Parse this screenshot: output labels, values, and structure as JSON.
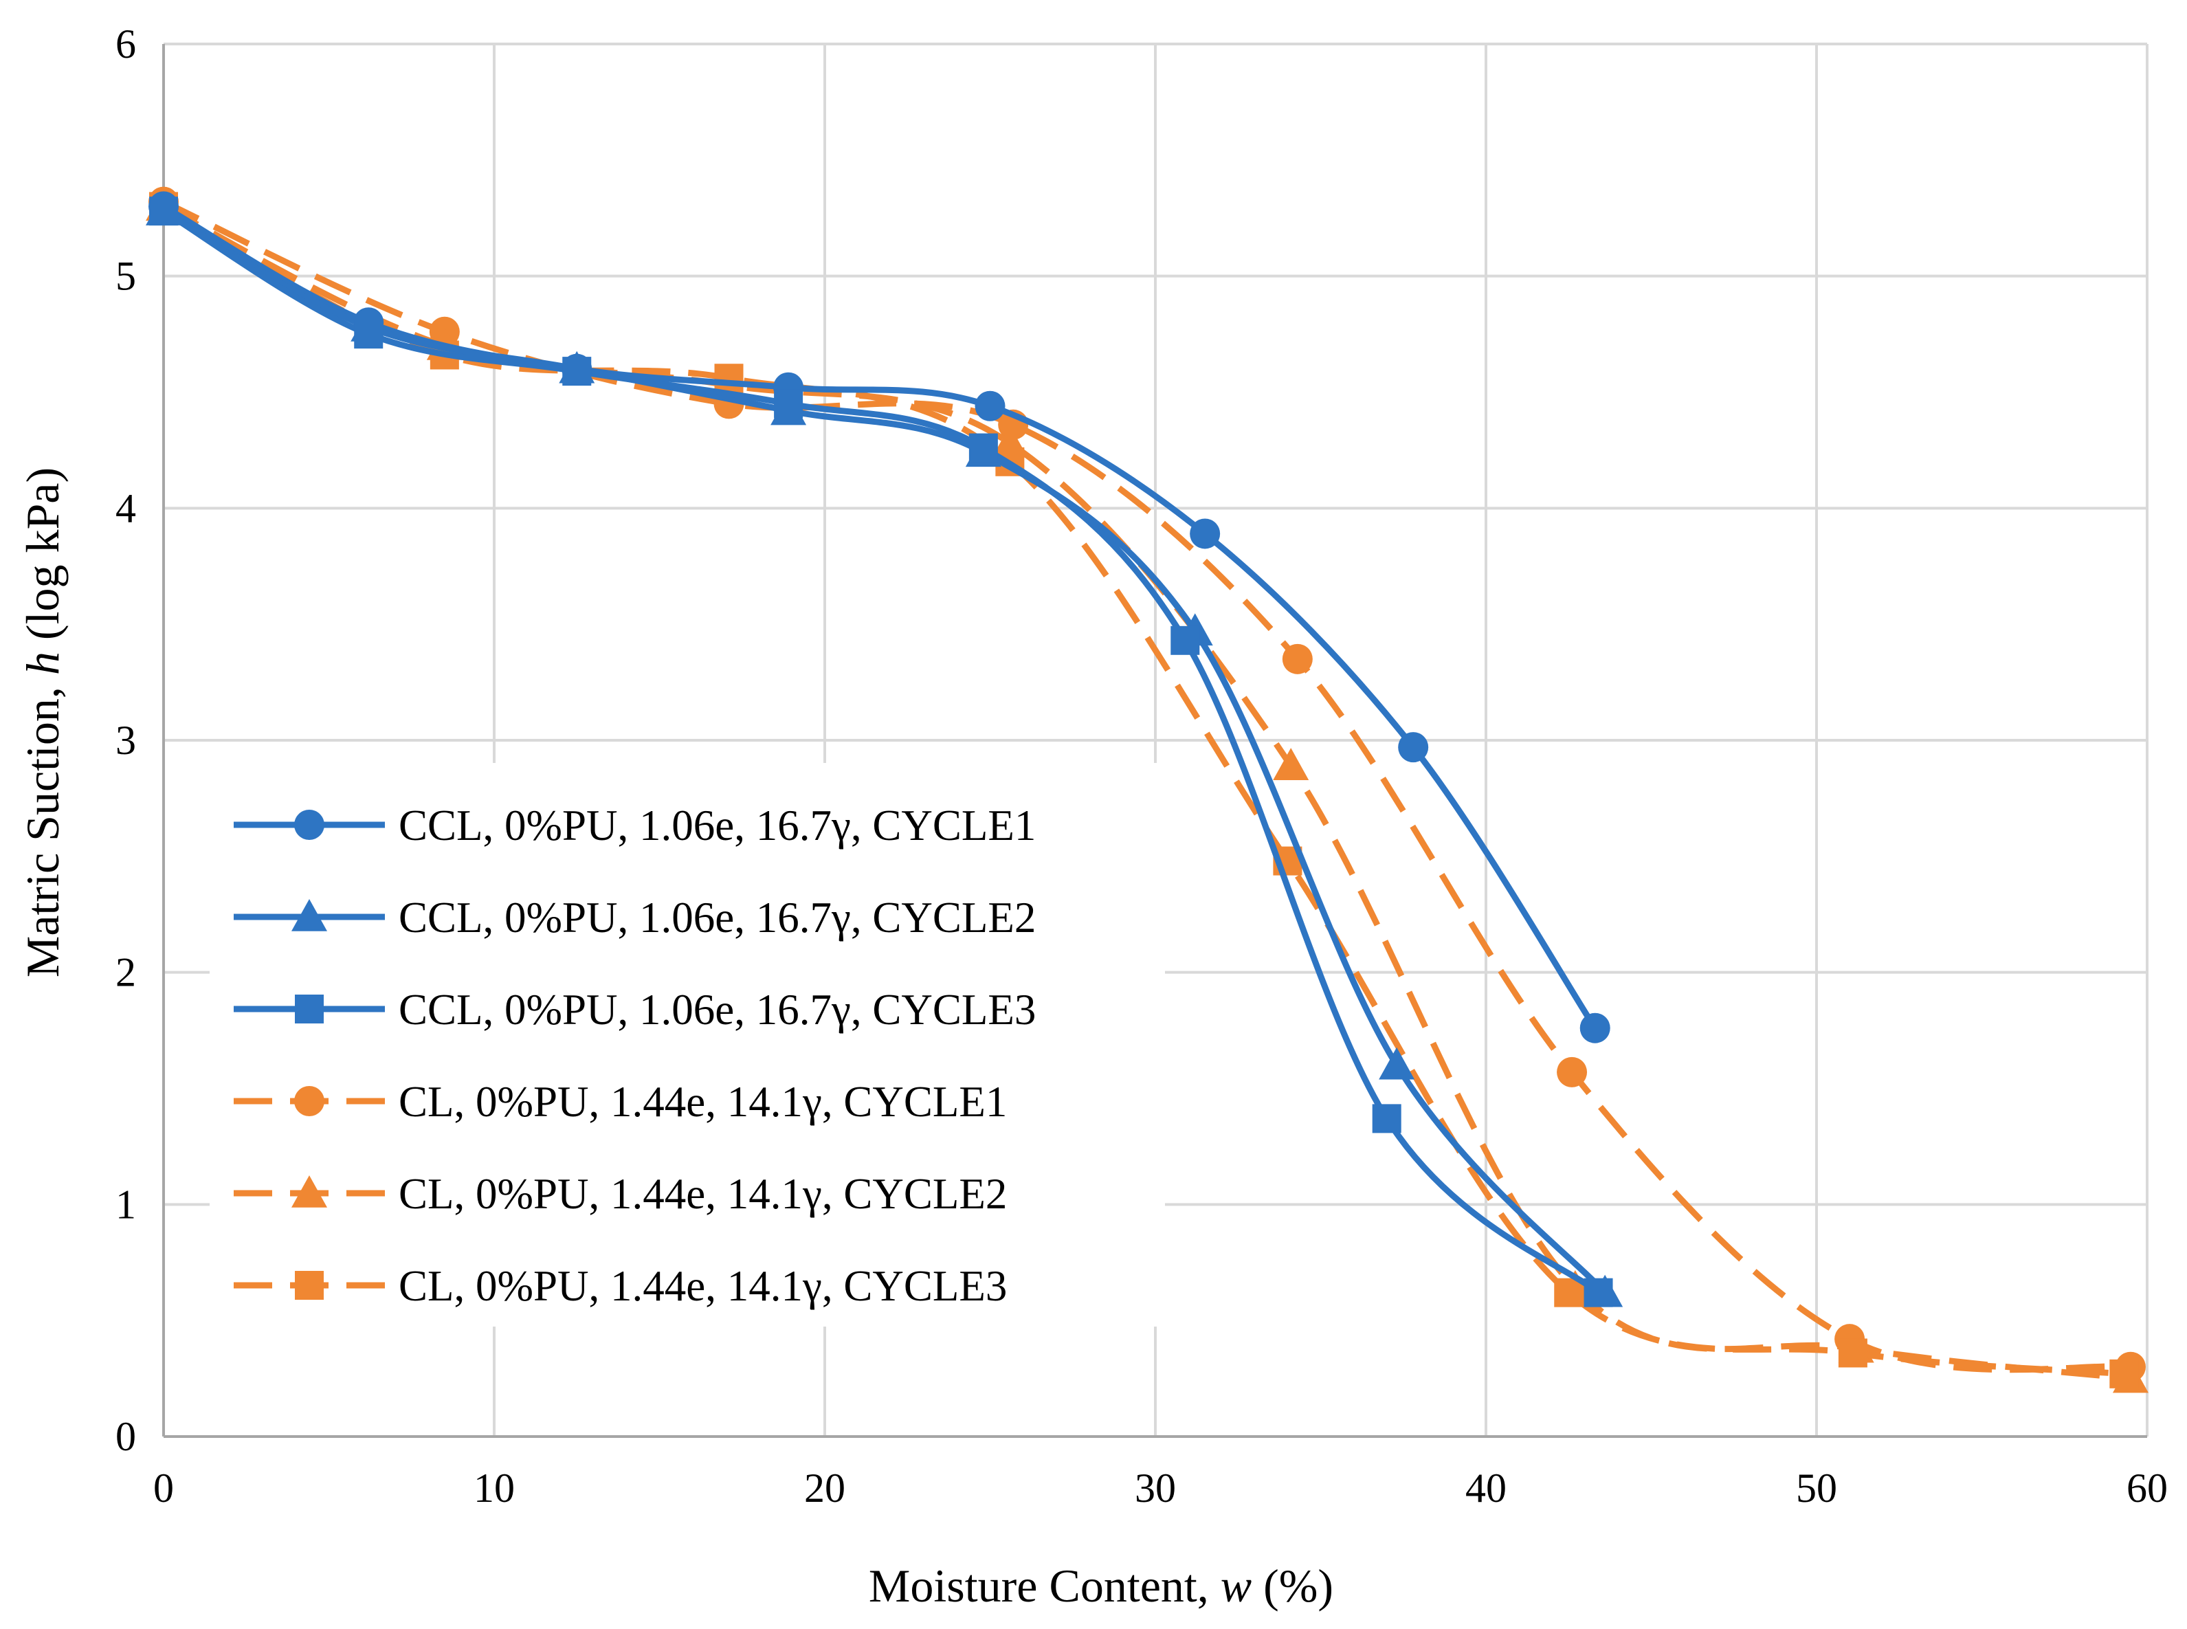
{
  "chart_data": {
    "type": "line",
    "title": "",
    "xlabel_prefix": "Moisture Content, ",
    "xlabel_var": "w",
    "xlabel_suffix": " (%)",
    "ylabel_prefix": "Matric Suction, ",
    "ylabel_var": "h",
    "ylabel_suffix": " (log kPa)",
    "xlim": [
      0,
      60
    ],
    "ylim": [
      0,
      6
    ],
    "xticks": [
      0,
      10,
      20,
      30,
      40,
      50,
      60
    ],
    "yticks": [
      0,
      1,
      2,
      3,
      4,
      5,
      6
    ],
    "grid": true,
    "legend_position": "lower-left",
    "series": [
      {
        "name": "CCL, 0%PU, 1.06e, 16.7γ, CYCLE1",
        "color": "#2E75C3",
        "dash": "solid",
        "marker": "circle",
        "x": [
          0,
          6.2,
          12.5,
          18.9,
          25.0,
          31.5,
          37.8,
          43.3
        ],
        "y": [
          5.3,
          4.8,
          4.6,
          4.52,
          4.44,
          3.89,
          2.97,
          1.76
        ]
      },
      {
        "name": "CCL, 0%PU, 1.06e, 16.7γ, CYCLE2",
        "color": "#2E75C3",
        "dash": "solid",
        "marker": "triangle",
        "x": [
          0,
          6.2,
          12.5,
          18.9,
          24.8,
          31.2,
          37.3,
          43.6
        ],
        "y": [
          5.28,
          4.78,
          4.6,
          4.42,
          4.24,
          3.47,
          1.6,
          0.62
        ]
      },
      {
        "name": "CCL, 0%PU, 1.06e, 16.7γ, CYCLE3",
        "color": "#2E75C3",
        "dash": "solid",
        "marker": "square",
        "x": [
          0,
          6.2,
          12.5,
          18.9,
          24.8,
          30.9,
          37.0,
          43.4
        ],
        "y": [
          5.28,
          4.75,
          4.59,
          4.45,
          4.26,
          3.43,
          1.37,
          0.62
        ]
      },
      {
        "name": "CL, 0%PU, 1.44e, 14.1γ, CYCLE1",
        "color": "#F08732",
        "dash": "dashed",
        "marker": "circle",
        "x": [
          0,
          8.5,
          17.1,
          25.7,
          34.3,
          42.6,
          51.0,
          59.5
        ],
        "y": [
          5.32,
          4.76,
          4.45,
          4.36,
          3.35,
          1.57,
          0.42,
          0.3
        ]
      },
      {
        "name": "CL, 0%PU, 1.44e, 14.1γ, CYCLE2",
        "color": "#F08732",
        "dash": "dashed",
        "marker": "triangle",
        "x": [
          0,
          8.5,
          17.1,
          25.6,
          34.1,
          42.7,
          51.2,
          59.5
        ],
        "y": [
          5.3,
          4.7,
          4.53,
          4.28,
          2.89,
          0.64,
          0.38,
          0.25
        ]
      },
      {
        "name": "CL, 0%PU, 1.44e, 14.1γ, CYCLE3",
        "color": "#F08732",
        "dash": "dashed",
        "marker": "square",
        "x": [
          0,
          8.5,
          17.1,
          25.6,
          34.0,
          42.5,
          51.1,
          59.3
        ],
        "y": [
          5.3,
          4.66,
          4.56,
          4.2,
          2.48,
          0.62,
          0.36,
          0.27
        ]
      }
    ]
  }
}
